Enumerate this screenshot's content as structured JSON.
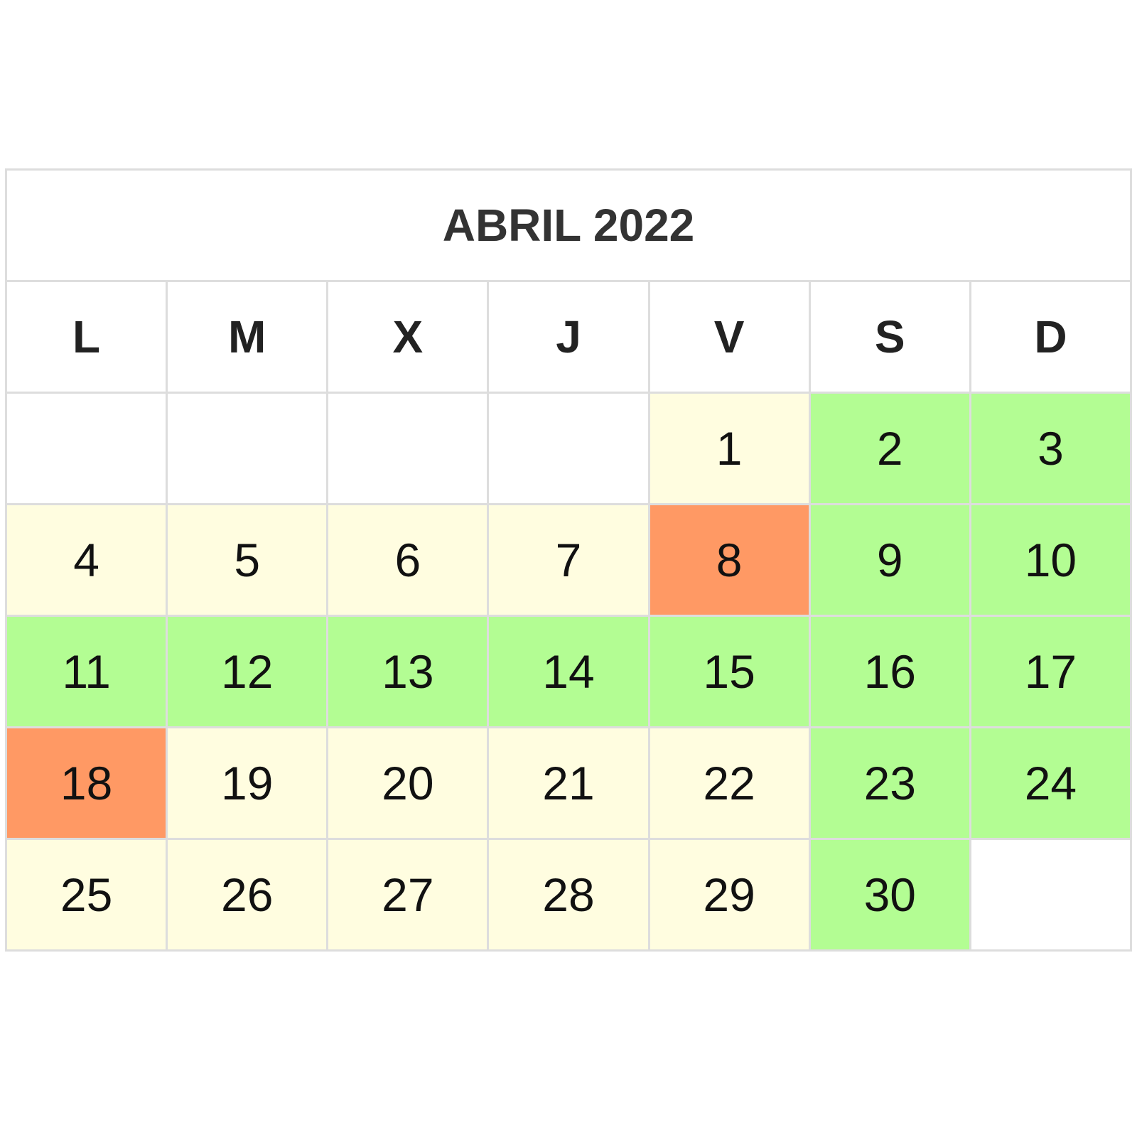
{
  "calendar": {
    "title": "ABRIL 2022",
    "weekdays": [
      "L",
      "M",
      "X",
      "J",
      "V",
      "S",
      "D"
    ],
    "colors": {
      "empty": "#ffffff",
      "workday": "#fffde0",
      "nonwork": "#b3fd93",
      "holiday": "#ff9964",
      "border": "#dddddd"
    },
    "weeks": [
      [
        {
          "day": "",
          "status": "empty"
        },
        {
          "day": "",
          "status": "empty"
        },
        {
          "day": "",
          "status": "empty"
        },
        {
          "day": "",
          "status": "empty"
        },
        {
          "day": "1",
          "status": "workday"
        },
        {
          "day": "2",
          "status": "nonwork"
        },
        {
          "day": "3",
          "status": "nonwork"
        }
      ],
      [
        {
          "day": "4",
          "status": "workday"
        },
        {
          "day": "5",
          "status": "workday"
        },
        {
          "day": "6",
          "status": "workday"
        },
        {
          "day": "7",
          "status": "workday"
        },
        {
          "day": "8",
          "status": "holiday"
        },
        {
          "day": "9",
          "status": "nonwork"
        },
        {
          "day": "10",
          "status": "nonwork"
        }
      ],
      [
        {
          "day": "11",
          "status": "nonwork"
        },
        {
          "day": "12",
          "status": "nonwork"
        },
        {
          "day": "13",
          "status": "nonwork"
        },
        {
          "day": "14",
          "status": "nonwork"
        },
        {
          "day": "15",
          "status": "nonwork"
        },
        {
          "day": "16",
          "status": "nonwork"
        },
        {
          "day": "17",
          "status": "nonwork"
        }
      ],
      [
        {
          "day": "18",
          "status": "holiday"
        },
        {
          "day": "19",
          "status": "workday"
        },
        {
          "day": "20",
          "status": "workday"
        },
        {
          "day": "21",
          "status": "workday"
        },
        {
          "day": "22",
          "status": "workday"
        },
        {
          "day": "23",
          "status": "nonwork"
        },
        {
          "day": "24",
          "status": "nonwork"
        }
      ],
      [
        {
          "day": "25",
          "status": "workday"
        },
        {
          "day": "26",
          "status": "workday"
        },
        {
          "day": "27",
          "status": "workday"
        },
        {
          "day": "28",
          "status": "workday"
        },
        {
          "day": "29",
          "status": "workday"
        },
        {
          "day": "30",
          "status": "nonwork"
        },
        {
          "day": "",
          "status": "empty"
        }
      ]
    ]
  }
}
